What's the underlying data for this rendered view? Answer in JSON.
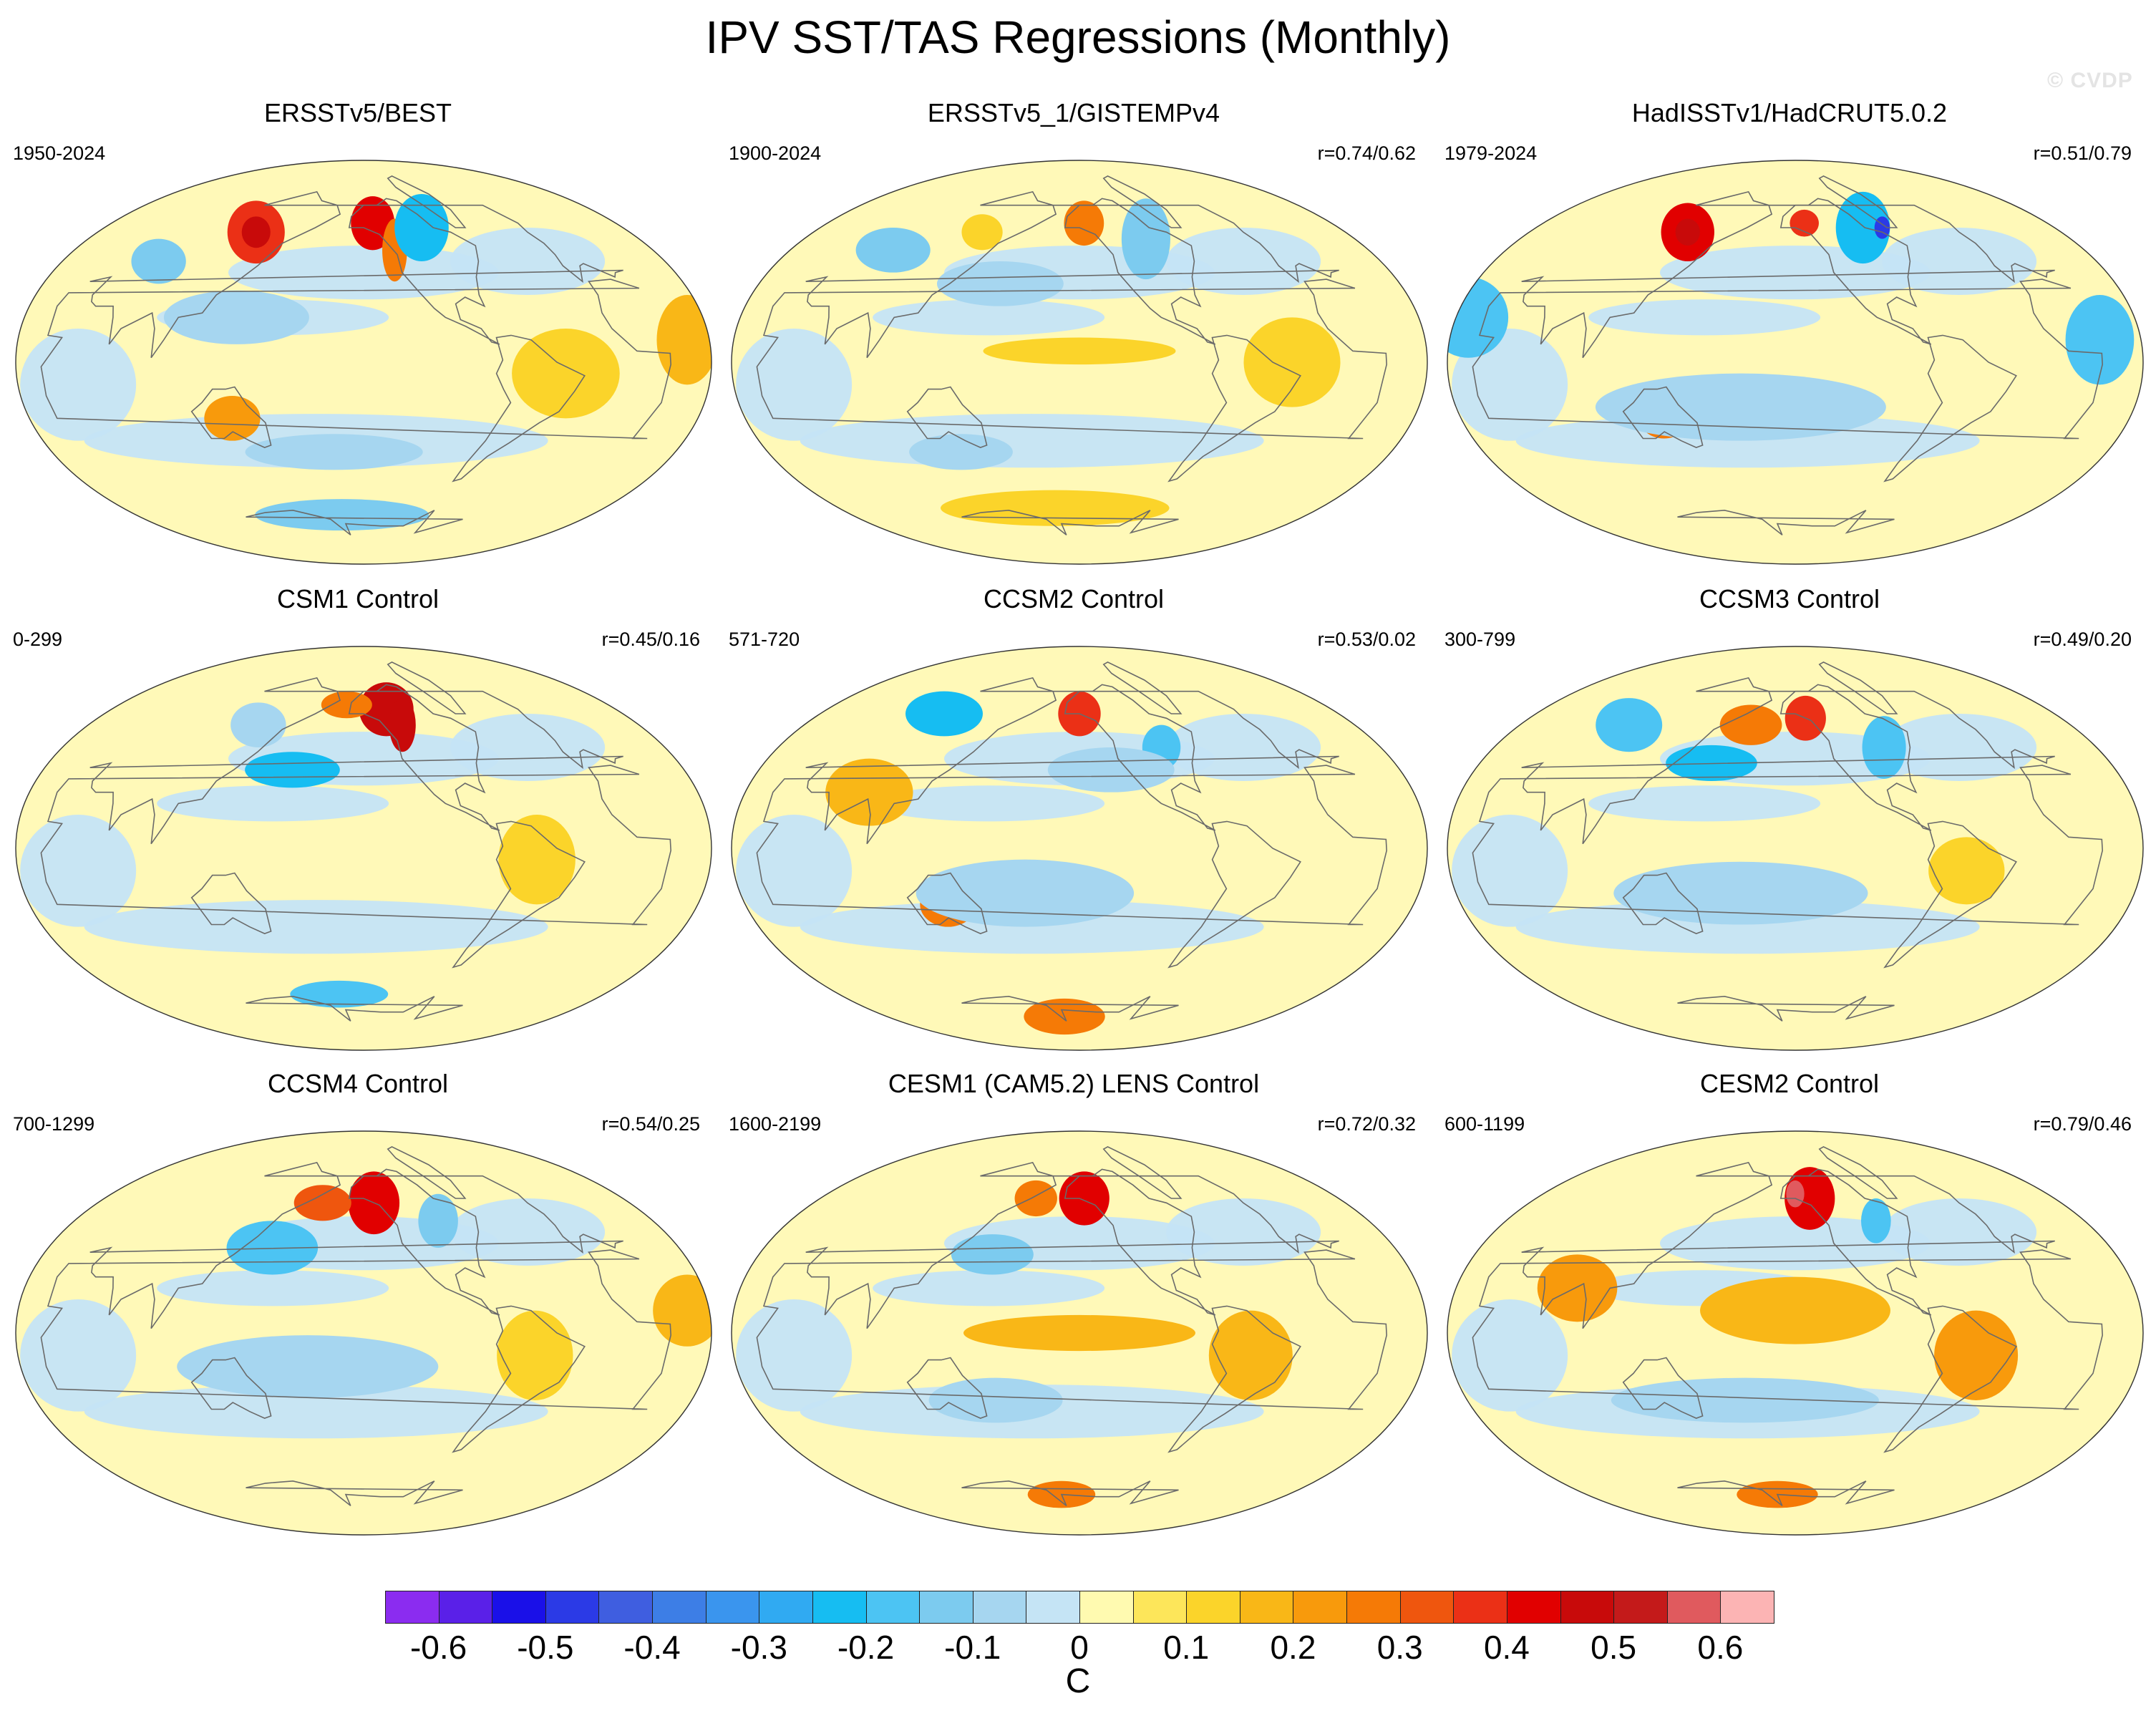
{
  "title": "IPV SST/TAS Regressions (Monthly)",
  "watermark": "© CVDP",
  "colors": {
    "ocean_neutral_warm": "#fff9b8",
    "ocean_neutral_cool": "#c5e4f5",
    "land_outline": "#6a6a6a",
    "frame": "#333333"
  },
  "panels": [
    {
      "title": "ERSSTv5/BEST",
      "period": "1950-2024",
      "corr": "",
      "anomalies": [
        {
          "lon": -255,
          "lat": 58,
          "rx": 28,
          "ry": 14,
          "v": 0.35
        },
        {
          "lon": -255,
          "lat": 58,
          "rx": 14,
          "ry": 7,
          "v": 0.45
        },
        {
          "lon": -140,
          "lat": 62,
          "rx": 24,
          "ry": 12,
          "v": 0.4
        },
        {
          "lon": -125,
          "lat": 50,
          "rx": 10,
          "ry": 14,
          "v": 0.3
        },
        {
          "lon": -90,
          "lat": 60,
          "rx": 28,
          "ry": 15,
          "v": -0.25
        },
        {
          "lon": -300,
          "lat": 45,
          "rx": 20,
          "ry": 10,
          "v": -0.12
        },
        {
          "lon": -45,
          "lat": -5,
          "rx": 28,
          "ry": 20,
          "v": 0.1
        },
        {
          "lon": -225,
          "lat": -25,
          "rx": 16,
          "ry": 10,
          "v": 0.2
        },
        {
          "lon": -180,
          "lat": -68,
          "rx": 120,
          "ry": 7,
          "v": -0.12
        },
        {
          "lon": -170,
          "lat": -40,
          "rx": 60,
          "ry": 8,
          "v": -0.08
        },
        {
          "lon": -220,
          "lat": 20,
          "rx": 40,
          "ry": 12,
          "v": -0.08
        },
        {
          "lon": 20,
          "lat": 10,
          "rx": 16,
          "ry": 20,
          "v": 0.15
        }
      ]
    },
    {
      "title": "ERSSTv5_1/GISTEMPv4",
      "period": "1900-2024",
      "corr": "r=0.74/0.62",
      "anomalies": [
        {
          "lon": -145,
          "lat": 62,
          "rx": 22,
          "ry": 10,
          "v": 0.28
        },
        {
          "lon": -245,
          "lat": 58,
          "rx": 20,
          "ry": 8,
          "v": 0.12
        },
        {
          "lon": -90,
          "lat": 55,
          "rx": 22,
          "ry": 18,
          "v": -0.15
        },
        {
          "lon": -300,
          "lat": 50,
          "rx": 30,
          "ry": 10,
          "v": -0.12
        },
        {
          "lon": -200,
          "lat": 35,
          "rx": 40,
          "ry": 10,
          "v": -0.08
        },
        {
          "lon": -40,
          "lat": 0,
          "rx": 25,
          "ry": 20,
          "v": 0.1
        },
        {
          "lon": -150,
          "lat": 5,
          "rx": 50,
          "ry": 6,
          "v": 0.1
        },
        {
          "lon": -180,
          "lat": -65,
          "rx": 140,
          "ry": 8,
          "v": 0.1
        },
        {
          "lon": -230,
          "lat": -40,
          "rx": 35,
          "ry": 8,
          "v": -0.1
        }
      ]
    },
    {
      "title": "HadISSTv1/HadCRUT5.0.2",
      "period": "1979-2024",
      "corr": "r=0.51/0.79",
      "anomalies": [
        {
          "lon": -255,
          "lat": 58,
          "rx": 26,
          "ry": 13,
          "v": 0.4
        },
        {
          "lon": -255,
          "lat": 58,
          "rx": 12,
          "ry": 6,
          "v": 0.5
        },
        {
          "lon": -140,
          "lat": 62,
          "rx": 16,
          "ry": 6,
          "v": 0.35
        },
        {
          "lon": -80,
          "lat": 60,
          "rx": 28,
          "ry": 16,
          "v": -0.25
        },
        {
          "lon": -60,
          "lat": 60,
          "rx": 8,
          "ry": 5,
          "v": -0.5
        },
        {
          "lon": -330,
          "lat": 20,
          "rx": 22,
          "ry": 18,
          "v": -0.2
        },
        {
          "lon": 10,
          "lat": 10,
          "rx": 18,
          "ry": 20,
          "v": -0.2
        },
        {
          "lon": -225,
          "lat": -25,
          "rx": 14,
          "ry": 9,
          "v": 0.25
        },
        {
          "lon": -180,
          "lat": -20,
          "rx": 80,
          "ry": 15,
          "v": -0.08
        }
      ]
    },
    {
      "title": "CSM1 Control",
      "period": "0-299",
      "corr": "r=0.45/0.16",
      "anomalies": [
        {
          "lon": -125,
          "lat": 62,
          "rx": 30,
          "ry": 12,
          "v": 0.45
        },
        {
          "lon": -115,
          "lat": 55,
          "rx": 12,
          "ry": 12,
          "v": 0.5
        },
        {
          "lon": -170,
          "lat": 64,
          "rx": 30,
          "ry": 6,
          "v": 0.3
        },
        {
          "lon": -195,
          "lat": 35,
          "rx": 30,
          "ry": 8,
          "v": -0.22
        },
        {
          "lon": -245,
          "lat": 55,
          "rx": 25,
          "ry": 10,
          "v": -0.1
        },
        {
          "lon": -180,
          "lat": -65,
          "rx": 60,
          "ry": 6,
          "v": -0.2
        },
        {
          "lon": -60,
          "lat": -5,
          "rx": 20,
          "ry": 20,
          "v": 0.1
        }
      ]
    },
    {
      "title": "CCSM2 Control",
      "period": "571-720",
      "corr": "r=0.53/0.02",
      "anomalies": [
        {
          "lon": -150,
          "lat": 60,
          "rx": 22,
          "ry": 10,
          "v": 0.35
        },
        {
          "lon": -290,
          "lat": 60,
          "rx": 40,
          "ry": 10,
          "v": -0.22
        },
        {
          "lon": -90,
          "lat": 45,
          "rx": 14,
          "ry": 10,
          "v": -0.2
        },
        {
          "lon": -270,
          "lat": 25,
          "rx": 25,
          "ry": 15,
          "v": 0.15
        },
        {
          "lon": -225,
          "lat": -25,
          "rx": 16,
          "ry": 10,
          "v": 0.25
        },
        {
          "lon": -180,
          "lat": -75,
          "rx": 60,
          "ry": 8,
          "v": 0.25
        },
        {
          "lon": -180,
          "lat": -20,
          "rx": 60,
          "ry": 15,
          "v": -0.08
        },
        {
          "lon": -130,
          "lat": 35,
          "rx": 40,
          "ry": 10,
          "v": -0.08
        }
      ]
    },
    {
      "title": "CCSM3 Control",
      "period": "300-799",
      "corr": "r=0.49/0.20",
      "anomalies": [
        {
          "lon": -140,
          "lat": 58,
          "rx": 20,
          "ry": 10,
          "v": 0.35
        },
        {
          "lon": -190,
          "lat": 55,
          "rx": 28,
          "ry": 9,
          "v": 0.25
        },
        {
          "lon": -205,
          "lat": 38,
          "rx": 30,
          "ry": 8,
          "v": -0.25
        },
        {
          "lon": -300,
          "lat": 55,
          "rx": 30,
          "ry": 12,
          "v": -0.18
        },
        {
          "lon": -85,
          "lat": 45,
          "rx": 16,
          "ry": 14,
          "v": -0.18
        },
        {
          "lon": -180,
          "lat": -20,
          "rx": 70,
          "ry": 14,
          "v": -0.08
        },
        {
          "lon": -60,
          "lat": -10,
          "rx": 20,
          "ry": 15,
          "v": 0.1
        }
      ]
    },
    {
      "title": "CCSM4 Control",
      "period": "700-1299",
      "corr": "r=0.54/0.25",
      "anomalies": [
        {
          "lon": -140,
          "lat": 58,
          "rx": 25,
          "ry": 14,
          "v": 0.42
        },
        {
          "lon": -190,
          "lat": 58,
          "rx": 28,
          "ry": 8,
          "v": 0.32
        },
        {
          "lon": -210,
          "lat": 38,
          "rx": 30,
          "ry": 12,
          "v": -0.2
        },
        {
          "lon": -90,
          "lat": 50,
          "rx": 16,
          "ry": 12,
          "v": -0.15
        },
        {
          "lon": -180,
          "lat": -15,
          "rx": 70,
          "ry": 14,
          "v": -0.08
        },
        {
          "lon": -60,
          "lat": -10,
          "rx": 20,
          "ry": 20,
          "v": 0.1
        },
        {
          "lon": 20,
          "lat": 10,
          "rx": 18,
          "ry": 16,
          "v": 0.15
        }
      ]
    },
    {
      "title": "CESM1 (CAM5.2) LENS Control",
      "period": "1600-2199",
      "corr": "r=0.72/0.32",
      "anomalies": [
        {
          "lon": -145,
          "lat": 60,
          "rx": 26,
          "ry": 12,
          "v": 0.4
        },
        {
          "lon": -195,
          "lat": 60,
          "rx": 22,
          "ry": 8,
          "v": 0.3
        },
        {
          "lon": -205,
          "lat": 35,
          "rx": 26,
          "ry": 9,
          "v": -0.15
        },
        {
          "lon": -150,
          "lat": 0,
          "rx": 60,
          "ry": 8,
          "v": 0.15
        },
        {
          "lon": -60,
          "lat": -10,
          "rx": 22,
          "ry": 20,
          "v": 0.18
        },
        {
          "lon": -180,
          "lat": -72,
          "rx": 50,
          "ry": 6,
          "v": 0.3
        },
        {
          "lon": -200,
          "lat": -30,
          "rx": 40,
          "ry": 10,
          "v": -0.08
        }
      ]
    },
    {
      "title": "CESM2 Control",
      "period": "600-1199",
      "corr": "r=0.79/0.46",
      "anomalies": [
        {
          "lon": -135,
          "lat": 60,
          "rx": 26,
          "ry": 14,
          "v": 0.42
        },
        {
          "lon": -150,
          "lat": 62,
          "rx": 10,
          "ry": 6,
          "v": 0.55
        },
        {
          "lon": -85,
          "lat": 50,
          "rx": 12,
          "ry": 10,
          "v": -0.2
        },
        {
          "lon": -150,
          "lat": 10,
          "rx": 50,
          "ry": 15,
          "v": 0.15
        },
        {
          "lon": -55,
          "lat": -10,
          "rx": 22,
          "ry": 20,
          "v": 0.22
        },
        {
          "lon": -270,
          "lat": 20,
          "rx": 22,
          "ry": 15,
          "v": 0.2
        },
        {
          "lon": -180,
          "lat": -72,
          "rx": 60,
          "ry": 6,
          "v": 0.25
        },
        {
          "lon": -180,
          "lat": -30,
          "rx": 80,
          "ry": 10,
          "v": -0.08
        }
      ]
    }
  ],
  "colorbar": {
    "colors": [
      "#8b2cf0",
      "#5a20e8",
      "#1a10e8",
      "#2b3ae6",
      "#3f5ee0",
      "#3d7ee6",
      "#3a95ee",
      "#30aaf2",
      "#16bdf2",
      "#4cc4f3",
      "#7ccbef",
      "#a6d6f0",
      "#c5e4f5",
      "#fffab0",
      "#fde65a",
      "#fbd42a",
      "#f9b717",
      "#f89a0c",
      "#f57a06",
      "#ef560e",
      "#eb3016",
      "#e10000",
      "#c80a0a",
      "#c41a1a",
      "#e05a5e",
      "#fcb4b4"
    ],
    "min": -0.65,
    "step": 0.05,
    "ticks": [
      "-0.6",
      "-0.5",
      "-0.4",
      "-0.3",
      "-0.2",
      "-0.1",
      "0",
      "0.1",
      "0.2",
      "0.3",
      "0.4",
      "0.5",
      "0.6"
    ],
    "units": "C"
  }
}
